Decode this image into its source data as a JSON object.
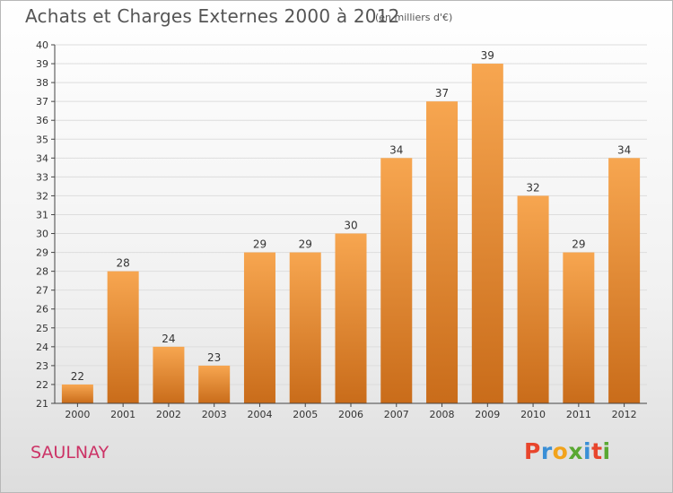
{
  "header": {
    "title": "Achats et Charges Externes 2000 à 2012",
    "subtitle": "(en milliers d'€)"
  },
  "footer": {
    "town": "SAULNAY",
    "logo": "Proxiti",
    "logo_colors": [
      "#e8452c",
      "#3a8fd6",
      "#f2a31b",
      "#5aa832",
      "#3a8fd6",
      "#e8452c",
      "#5aa832"
    ]
  },
  "colors": {
    "bar_top": "#f7a650",
    "bar_bottom": "#c96c1a",
    "grid": "#dddddd",
    "axis": "#444444"
  },
  "chart_data": {
    "type": "bar",
    "categories": [
      "2000",
      "2001",
      "2002",
      "2003",
      "2004",
      "2005",
      "2006",
      "2007",
      "2008",
      "2009",
      "2010",
      "2011",
      "2012"
    ],
    "values": [
      22,
      28,
      24,
      23,
      29,
      29,
      30,
      34,
      37,
      39,
      32,
      29,
      34
    ],
    "ylim": [
      21,
      40
    ],
    "yticks": [
      21,
      22,
      23,
      24,
      25,
      26,
      27,
      28,
      29,
      30,
      31,
      32,
      33,
      34,
      35,
      36,
      37,
      38,
      39,
      40
    ],
    "grid": true,
    "title": "Achats et Charges Externes 2000 à 2012",
    "xlabel": "",
    "ylabel": ""
  }
}
